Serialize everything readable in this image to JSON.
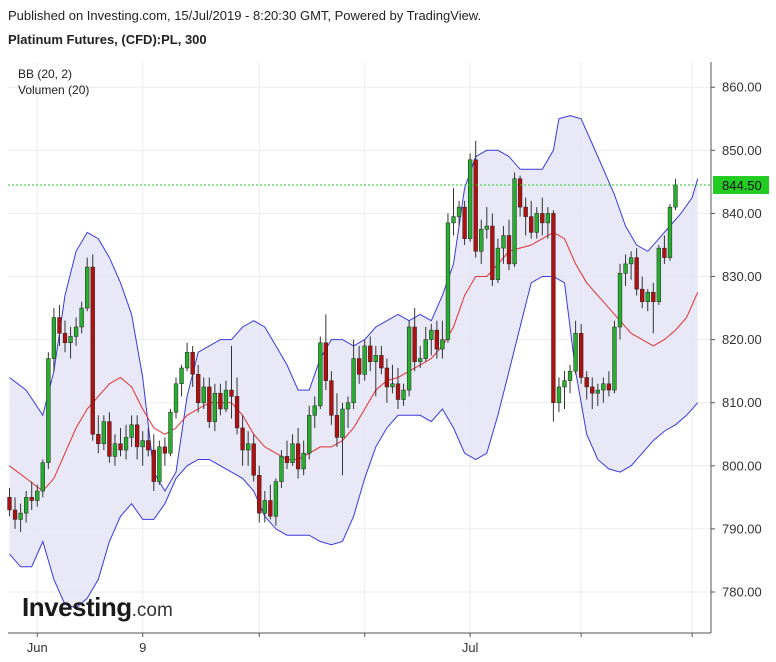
{
  "header": {
    "published": "Published on Investing.com, 15/Jul/2019 - 8:20:30 GMT, Powered by TradingView.",
    "symbol": "Platinum Futures, (CFD):PL, 300"
  },
  "indicators": {
    "bb": "BB (20, 2)",
    "volume": "Volumen (20)"
  },
  "logo": {
    "main": "Investing",
    "suffix": ".com"
  },
  "colors": {
    "up": "#27ae2e",
    "down": "#b01010",
    "wick": "#333333",
    "band": "#3a3ae0",
    "band_fill": "#e4e4f4",
    "basis": "#e03030",
    "last_price_line": "#22cc22",
    "last_price_label_bg": "#22cc22"
  },
  "chart_data": {
    "type": "candlestick",
    "title": "Platinum Futures, (CFD):PL, 300",
    "y_ticks": [
      "860.00",
      "850.00",
      "840.00",
      "830.00",
      "820.00",
      "810.00",
      "800.00",
      "790.00",
      "780.00"
    ],
    "y_tick_values": [
      860,
      850,
      840,
      830,
      820,
      810,
      800,
      790,
      780
    ],
    "ylim": [
      773.5,
      864
    ],
    "x_tick_labels": [
      {
        "label": "Jun",
        "index": 5
      },
      {
        "label": "9",
        "index": 24
      },
      {
        "label": "",
        "index": 45
      },
      {
        "label": "",
        "index": 64
      },
      {
        "label": "Jul",
        "index": 83
      },
      {
        "label": "",
        "index": 103
      },
      {
        "label": "",
        "index": 123
      }
    ],
    "last_price": 844.5,
    "last_price_label": "844.50",
    "candles_ohlc": [
      [
        795.0,
        796.5,
        792.0,
        793.0
      ],
      [
        793.0,
        795.0,
        790.0,
        791.5
      ],
      [
        791.5,
        794.0,
        789.5,
        792.5
      ],
      [
        792.5,
        796.0,
        791.0,
        795.0
      ],
      [
        795.0,
        797.5,
        793.0,
        794.5
      ],
      [
        794.5,
        797.0,
        793.5,
        796.0
      ],
      [
        796.0,
        801.0,
        795.0,
        800.5
      ],
      [
        800.5,
        818.0,
        799.5,
        817.0
      ],
      [
        817.0,
        825.0,
        815.0,
        823.5
      ],
      [
        823.5,
        825.5,
        819.0,
        821.0
      ],
      [
        821.0,
        823.0,
        818.0,
        819.5
      ],
      [
        819.5,
        822.0,
        817.0,
        820.5
      ],
      [
        820.5,
        823.5,
        819.0,
        822.0
      ],
      [
        822.0,
        826.0,
        821.0,
        825.0
      ],
      [
        825.0,
        833.0,
        824.5,
        831.5
      ],
      [
        831.5,
        833.5,
        804.0,
        805.0
      ],
      [
        805.0,
        808.0,
        802.0,
        803.5
      ],
      [
        803.5,
        808.0,
        802.5,
        807.0
      ],
      [
        807.0,
        808.5,
        800.5,
        801.5
      ],
      [
        801.5,
        805.0,
        800.0,
        803.5
      ],
      [
        803.5,
        806.0,
        801.5,
        802.5
      ],
      [
        802.5,
        806.5,
        801.0,
        804.5
      ],
      [
        804.5,
        808.0,
        803.0,
        806.5
      ],
      [
        806.5,
        808.0,
        801.0,
        803.0
      ],
      [
        803.0,
        805.5,
        800.0,
        804.0
      ],
      [
        804.0,
        806.0,
        801.5,
        802.5
      ],
      [
        802.5,
        805.0,
        796.0,
        797.5
      ],
      [
        797.5,
        804.0,
        797.0,
        803.0
      ],
      [
        803.0,
        804.5,
        800.0,
        802.0
      ],
      [
        802.0,
        809.0,
        801.5,
        808.5
      ],
      [
        808.5,
        814.0,
        807.5,
        813.0
      ],
      [
        813.0,
        816.0,
        811.0,
        815.5
      ],
      [
        815.5,
        819.5,
        815.0,
        818.0
      ],
      [
        818.0,
        819.0,
        812.5,
        814.5
      ],
      [
        814.5,
        816.0,
        808.5,
        810.0
      ],
      [
        810.0,
        814.0,
        809.0,
        812.5
      ],
      [
        812.5,
        814.0,
        806.0,
        807.0
      ],
      [
        807.0,
        813.0,
        805.5,
        811.5
      ],
      [
        811.5,
        813.0,
        808.0,
        809.0
      ],
      [
        809.0,
        813.5,
        808.5,
        812.0
      ],
      [
        812.0,
        819.0,
        807.5,
        811.0
      ],
      [
        811.0,
        814.0,
        805.0,
        806.0
      ],
      [
        806.0,
        808.0,
        800.0,
        802.5
      ],
      [
        802.5,
        805.5,
        800.0,
        803.5
      ],
      [
        803.5,
        805.0,
        797.5,
        798.5
      ],
      [
        798.5,
        800.0,
        791.0,
        792.5
      ],
      [
        792.5,
        796.0,
        791.0,
        794.5
      ],
      [
        794.5,
        797.0,
        791.5,
        792.0
      ],
      [
        792.0,
        798.0,
        790.5,
        797.5
      ],
      [
        797.5,
        802.5,
        796.5,
        801.5
      ],
      [
        801.5,
        804.0,
        799.5,
        800.5
      ],
      [
        800.5,
        805.0,
        800.0,
        803.5
      ],
      [
        803.5,
        806.0,
        798.0,
        799.5
      ],
      [
        799.5,
        804.0,
        798.5,
        802.0
      ],
      [
        802.0,
        809.5,
        801.0,
        808.0
      ],
      [
        808.0,
        811.0,
        806.0,
        809.5
      ],
      [
        809.5,
        820.5,
        809.0,
        819.5
      ],
      [
        819.5,
        824.0,
        812.0,
        813.5
      ],
      [
        813.5,
        815.0,
        806.5,
        808.0
      ],
      [
        808.0,
        811.5,
        803.0,
        804.5
      ],
      [
        804.5,
        810.0,
        798.5,
        809.0
      ],
      [
        809.0,
        811.0,
        806.0,
        810.0
      ],
      [
        810.0,
        820.0,
        809.0,
        817.0
      ],
      [
        817.0,
        819.0,
        813.0,
        814.5
      ],
      [
        814.5,
        820.0,
        813.5,
        819.0
      ],
      [
        819.0,
        820.5,
        815.0,
        816.5
      ],
      [
        816.5,
        819.0,
        811.0,
        817.5
      ],
      [
        817.5,
        819.0,
        814.5,
        815.5
      ],
      [
        815.5,
        817.0,
        810.0,
        812.5
      ],
      [
        812.5,
        816.0,
        811.5,
        813.0
      ],
      [
        813.0,
        815.5,
        809.0,
        810.5
      ],
      [
        810.5,
        813.0,
        809.5,
        812.0
      ],
      [
        812.0,
        823.0,
        811.0,
        822.0
      ],
      [
        822.0,
        825.0,
        815.0,
        816.5
      ],
      [
        816.5,
        819.0,
        815.5,
        817.0
      ],
      [
        817.0,
        822.0,
        816.5,
        820.0
      ],
      [
        820.0,
        822.5,
        817.5,
        821.5
      ],
      [
        821.5,
        823.0,
        817.0,
        818.5
      ],
      [
        818.5,
        823.0,
        817.0,
        820.0
      ],
      [
        820.0,
        840.0,
        819.5,
        838.5
      ],
      [
        838.5,
        844.0,
        836.5,
        839.5
      ],
      [
        839.5,
        842.0,
        838.0,
        841.0
      ],
      [
        841.0,
        842.0,
        835.0,
        836.0
      ],
      [
        836.0,
        849.5,
        835.5,
        848.5
      ],
      [
        848.5,
        851.5,
        833.0,
        834.0
      ],
      [
        834.0,
        839.0,
        832.0,
        837.5
      ],
      [
        837.5,
        841.0,
        836.0,
        838.0
      ],
      [
        838.0,
        840.0,
        828.5,
        829.5
      ],
      [
        829.5,
        836.0,
        829.0,
        834.5
      ],
      [
        834.5,
        838.0,
        832.0,
        836.5
      ],
      [
        836.5,
        839.0,
        831.0,
        832.0
      ],
      [
        832.0,
        846.5,
        831.5,
        845.5
      ],
      [
        845.5,
        846.0,
        839.5,
        841.0
      ],
      [
        841.0,
        842.5,
        836.5,
        839.5
      ],
      [
        839.5,
        842.0,
        836.0,
        837.0
      ],
      [
        837.0,
        841.0,
        836.0,
        840.0
      ],
      [
        840.0,
        842.5,
        836.5,
        838.5
      ],
      [
        838.5,
        841.0,
        836.0,
        840.0
      ],
      [
        840.0,
        840.5,
        807.0,
        810.0
      ],
      [
        810.0,
        814.0,
        808.5,
        812.5
      ],
      [
        812.5,
        815.0,
        809.0,
        813.5
      ],
      [
        813.5,
        816.0,
        811.5,
        815.0
      ],
      [
        815.0,
        823.0,
        814.5,
        821.0
      ],
      [
        821.0,
        822.5,
        813.0,
        814.0
      ],
      [
        814.0,
        815.0,
        810.5,
        812.5
      ],
      [
        812.5,
        814.0,
        809.0,
        811.5
      ],
      [
        811.5,
        813.0,
        809.5,
        812.0
      ],
      [
        812.0,
        814.0,
        810.0,
        813.0
      ],
      [
        813.0,
        815.0,
        811.0,
        812.0
      ],
      [
        812.0,
        823.0,
        811.5,
        822.0
      ],
      [
        822.0,
        832.0,
        820.0,
        830.5
      ],
      [
        830.5,
        833.5,
        828.5,
        832.0
      ],
      [
        832.0,
        834.0,
        829.5,
        833.0
      ],
      [
        833.0,
        834.5,
        827.0,
        828.0
      ],
      [
        828.0,
        830.0,
        825.0,
        826.0
      ],
      [
        826.0,
        828.0,
        824.5,
        827.5
      ],
      [
        827.5,
        829.0,
        821.0,
        826.0
      ],
      [
        826.0,
        835.0,
        825.5,
        834.5
      ],
      [
        834.5,
        836.5,
        832.0,
        833.0
      ],
      [
        833.0,
        841.5,
        832.5,
        841.0
      ],
      [
        841.0,
        845.5,
        840.5,
        844.5
      ]
    ],
    "bb_upper": [
      [
        0,
        814
      ],
      [
        3,
        812
      ],
      [
        6,
        808
      ],
      [
        8,
        815
      ],
      [
        10,
        827
      ],
      [
        12,
        834
      ],
      [
        14,
        837
      ],
      [
        16,
        836
      ],
      [
        18,
        833
      ],
      [
        20,
        829
      ],
      [
        22,
        824
      ],
      [
        24,
        814
      ],
      [
        26,
        799
      ],
      [
        28,
        796
      ],
      [
        30,
        799
      ],
      [
        32,
        811
      ],
      [
        34,
        818
      ],
      [
        36,
        819
      ],
      [
        38,
        820
      ],
      [
        40,
        820
      ],
      [
        42,
        822
      ],
      [
        44,
        823
      ],
      [
        46,
        822
      ],
      [
        48,
        819
      ],
      [
        50,
        816
      ],
      [
        52,
        812
      ],
      [
        54,
        812
      ],
      [
        56,
        817
      ],
      [
        58,
        820
      ],
      [
        60,
        820
      ],
      [
        62,
        819
      ],
      [
        64,
        820
      ],
      [
        66,
        822
      ],
      [
        68,
        823
      ],
      [
        70,
        824
      ],
      [
        72,
        823
      ],
      [
        74,
        824
      ],
      [
        76,
        823
      ],
      [
        78,
        827
      ],
      [
        80,
        832
      ],
      [
        82,
        844
      ],
      [
        84,
        849
      ],
      [
        86,
        850
      ],
      [
        88,
        850
      ],
      [
        90,
        849
      ],
      [
        92,
        847
      ],
      [
        94,
        847
      ],
      [
        96,
        847
      ],
      [
        98,
        850
      ],
      [
        99,
        855
      ],
      [
        101,
        855.5
      ],
      [
        103,
        855
      ],
      [
        105,
        851
      ],
      [
        107,
        847
      ],
      [
        109,
        843
      ],
      [
        111,
        838
      ],
      [
        113,
        835
      ],
      [
        115,
        834
      ],
      [
        117,
        836
      ],
      [
        119,
        838
      ],
      [
        121,
        840
      ],
      [
        123,
        842.5
      ],
      [
        124,
        845.5
      ]
    ],
    "bb_lower": [
      [
        0,
        786
      ],
      [
        2,
        784
      ],
      [
        4,
        784
      ],
      [
        6,
        788
      ],
      [
        8,
        782
      ],
      [
        10,
        778
      ],
      [
        12,
        777.5
      ],
      [
        14,
        779
      ],
      [
        16,
        782
      ],
      [
        18,
        788
      ],
      [
        20,
        792
      ],
      [
        22,
        794
      ],
      [
        24,
        791.5
      ],
      [
        26,
        791.5
      ],
      [
        28,
        794
      ],
      [
        30,
        798
      ],
      [
        32,
        800
      ],
      [
        34,
        801
      ],
      [
        36,
        801
      ],
      [
        38,
        800
      ],
      [
        40,
        799
      ],
      [
        42,
        798
      ],
      [
        44,
        796
      ],
      [
        46,
        792
      ],
      [
        48,
        790
      ],
      [
        50,
        789
      ],
      [
        52,
        789
      ],
      [
        54,
        789
      ],
      [
        56,
        788
      ],
      [
        58,
        787.5
      ],
      [
        60,
        788
      ],
      [
        62,
        792
      ],
      [
        64,
        798
      ],
      [
        66,
        803
      ],
      [
        68,
        806
      ],
      [
        70,
        808
      ],
      [
        72,
        808
      ],
      [
        74,
        808
      ],
      [
        76,
        807
      ],
      [
        78,
        809
      ],
      [
        80,
        806
      ],
      [
        82,
        802
      ],
      [
        84,
        801
      ],
      [
        86,
        802
      ],
      [
        88,
        808
      ],
      [
        90,
        815
      ],
      [
        92,
        822
      ],
      [
        94,
        829
      ],
      [
        96,
        830
      ],
      [
        98,
        830
      ],
      [
        100,
        829
      ],
      [
        102,
        815
      ],
      [
        104,
        805
      ],
      [
        106,
        801
      ],
      [
        108,
        799.5
      ],
      [
        110,
        799
      ],
      [
        112,
        800
      ],
      [
        114,
        802
      ],
      [
        116,
        804
      ],
      [
        118,
        805.5
      ],
      [
        120,
        806.5
      ],
      [
        122,
        808
      ],
      [
        124,
        810
      ]
    ],
    "bb_basis": [
      [
        0,
        800
      ],
      [
        3,
        798
      ],
      [
        6,
        796
      ],
      [
        8,
        798
      ],
      [
        10,
        802
      ],
      [
        12,
        806
      ],
      [
        14,
        809
      ],
      [
        16,
        811
      ],
      [
        18,
        813
      ],
      [
        20,
        814
      ],
      [
        22,
        812.5
      ],
      [
        24,
        809
      ],
      [
        26,
        806
      ],
      [
        28,
        805
      ],
      [
        30,
        806
      ],
      [
        32,
        808
      ],
      [
        34,
        809
      ],
      [
        36,
        810
      ],
      [
        38,
        810
      ],
      [
        40,
        810
      ],
      [
        42,
        808
      ],
      [
        44,
        805
      ],
      [
        46,
        803
      ],
      [
        48,
        802
      ],
      [
        50,
        801
      ],
      [
        52,
        801
      ],
      [
        54,
        802
      ],
      [
        56,
        803
      ],
      [
        58,
        803
      ],
      [
        60,
        804
      ],
      [
        62,
        806
      ],
      [
        64,
        809
      ],
      [
        66,
        812
      ],
      [
        68,
        813.5
      ],
      [
        70,
        814
      ],
      [
        72,
        815
      ],
      [
        74,
        816
      ],
      [
        76,
        817
      ],
      [
        78,
        819
      ],
      [
        80,
        822
      ],
      [
        82,
        827
      ],
      [
        84,
        830
      ],
      [
        86,
        830
      ],
      [
        88,
        832
      ],
      [
        90,
        834
      ],
      [
        92,
        834.5
      ],
      [
        94,
        835
      ],
      [
        96,
        836
      ],
      [
        98,
        837
      ],
      [
        100,
        836
      ],
      [
        102,
        832
      ],
      [
        104,
        829
      ],
      [
        106,
        827
      ],
      [
        108,
        825
      ],
      [
        110,
        823
      ],
      [
        112,
        821
      ],
      [
        114,
        820
      ],
      [
        116,
        819
      ],
      [
        118,
        820
      ],
      [
        120,
        821.5
      ],
      [
        122,
        823.5
      ],
      [
        124,
        827.5
      ]
    ]
  }
}
